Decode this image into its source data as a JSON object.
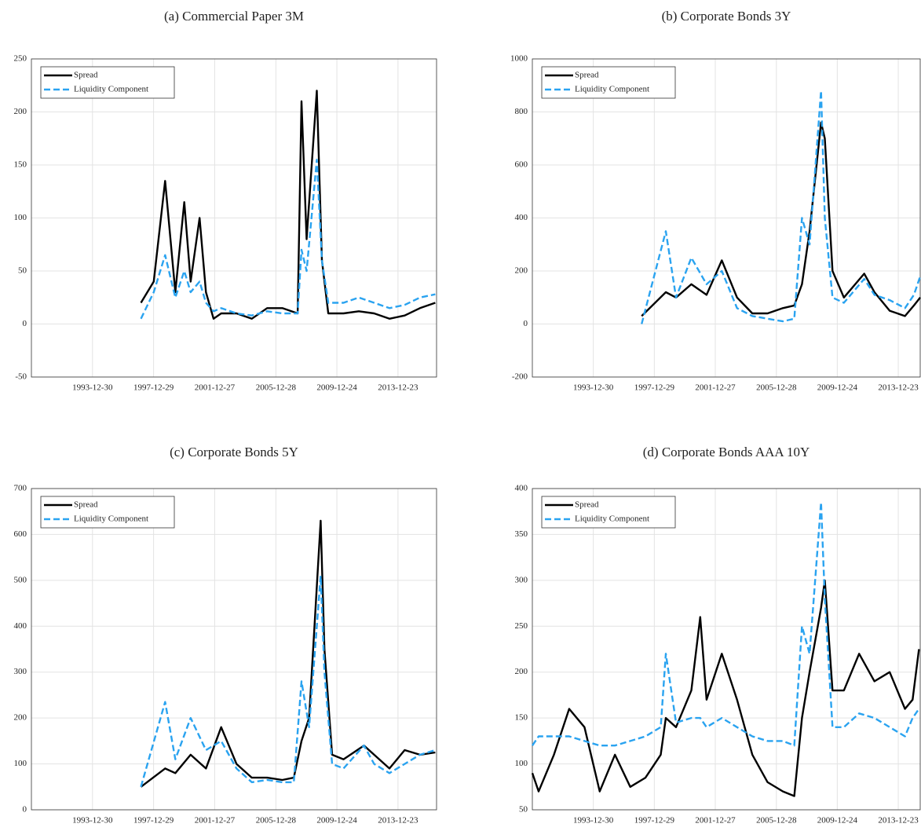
{
  "chart_data": [
    {
      "type": "line",
      "title": "(a) Commercial Paper 3M",
      "legend": "upper left",
      "grid": true,
      "xlim": [
        "1990-01-01",
        "2016-07-01"
      ],
      "xticks": [
        "1993-12-30",
        "1997-12-29",
        "2001-12-27",
        "2005-12-28",
        "2009-12-24",
        "2013-12-23"
      ],
      "ylim": [
        -50,
        250
      ],
      "yticks": [
        -50,
        0,
        50,
        100,
        150,
        200,
        250
      ],
      "x": [
        "1997-03-01",
        "1998-01-01",
        "1998-10-01",
        "1999-06-01",
        "2000-01-01",
        "2000-06-01",
        "2001-01-01",
        "2001-06-01",
        "2001-12-01",
        "2002-06-01",
        "2003-06-01",
        "2004-06-01",
        "2005-06-01",
        "2006-06-01",
        "2007-06-01",
        "2007-09-01",
        "2008-01-01",
        "2008-09-01",
        "2009-01-01",
        "2009-06-01",
        "2010-06-01",
        "2011-06-01",
        "2012-06-01",
        "2013-06-01",
        "2014-06-01",
        "2015-06-01",
        "2016-06-01"
      ],
      "series": [
        {
          "name": "Spread",
          "color": "#000000",
          "linestyle": "solid",
          "values": [
            20,
            40,
            135,
            30,
            115,
            40,
            100,
            30,
            5,
            10,
            10,
            5,
            15,
            15,
            10,
            210,
            80,
            220,
            60,
            10,
            10,
            12,
            10,
            5,
            8,
            15,
            20
          ]
        },
        {
          "name": "Liquidity Component",
          "color": "#2aa3f0",
          "linestyle": "dashed",
          "values": [
            5,
            30,
            65,
            25,
            50,
            30,
            40,
            20,
            12,
            15,
            10,
            8,
            12,
            10,
            10,
            70,
            50,
            155,
            60,
            20,
            20,
            25,
            20,
            15,
            18,
            25,
            28
          ]
        }
      ]
    },
    {
      "type": "line",
      "title": "(b) Corporate Bonds 3Y",
      "legend": "upper left",
      "grid": true,
      "xlim": [
        "1990-01-01",
        "2015-06-01"
      ],
      "xticks": [
        "1993-12-30",
        "1997-12-29",
        "2001-12-27",
        "2005-12-28",
        "2009-12-24",
        "2013-12-23"
      ],
      "ylim": [
        -200,
        1000
      ],
      "yticks": [
        -200,
        0,
        200,
        400,
        600,
        800,
        1000
      ],
      "x": [
        "1997-03-01",
        "1998-10-01",
        "1999-06-01",
        "2000-06-01",
        "2001-06-01",
        "2002-06-01",
        "2003-06-01",
        "2004-06-01",
        "2005-06-01",
        "2006-06-01",
        "2007-03-01",
        "2007-09-01",
        "2008-03-01",
        "2008-12-01",
        "2009-03-01",
        "2009-09-01",
        "2010-06-01",
        "2011-10-01",
        "2012-06-01",
        "2013-06-01",
        "2014-06-01",
        "2015-01-01",
        "2015-06-01"
      ],
      "series": [
        {
          "name": "Spread",
          "color": "#000000",
          "linestyle": "solid",
          "values": [
            30,
            120,
            100,
            150,
            110,
            240,
            100,
            40,
            40,
            60,
            70,
            150,
            350,
            760,
            700,
            200,
            100,
            190,
            120,
            50,
            30,
            70,
            100
          ]
        },
        {
          "name": "Liquidity Component",
          "color": "#2aa3f0",
          "linestyle": "dashed",
          "values": [
            0,
            350,
            100,
            250,
            150,
            200,
            60,
            30,
            20,
            10,
            20,
            400,
            300,
            880,
            400,
            100,
            80,
            170,
            110,
            90,
            60,
            110,
            180
          ]
        }
      ]
    },
    {
      "type": "line",
      "title": "(c) Corporate Bonds 5Y",
      "legend": "upper left",
      "grid": true,
      "xlim": [
        "1990-01-01",
        "2016-07-01"
      ],
      "xticks": [
        "1993-12-30",
        "1997-12-29",
        "2001-12-27",
        "2005-12-28",
        "2009-12-24",
        "2013-12-23"
      ],
      "ylim": [
        0,
        700
      ],
      "yticks": [
        0,
        100,
        200,
        300,
        400,
        500,
        600,
        700
      ],
      "x": [
        "1997-03-01",
        "1998-10-01",
        "1999-06-01",
        "2000-06-01",
        "2001-06-01",
        "2002-06-01",
        "2003-06-01",
        "2004-06-01",
        "2005-06-01",
        "2006-06-01",
        "2007-03-01",
        "2007-09-01",
        "2008-03-01",
        "2008-12-01",
        "2009-03-01",
        "2009-09-01",
        "2010-06-01",
        "2011-10-01",
        "2012-06-01",
        "2013-06-01",
        "2014-06-01",
        "2015-06-01",
        "2016-06-01"
      ],
      "series": [
        {
          "name": "Spread",
          "color": "#000000",
          "linestyle": "solid",
          "values": [
            50,
            90,
            80,
            120,
            90,
            180,
            100,
            70,
            70,
            65,
            70,
            150,
            200,
            630,
            350,
            120,
            110,
            140,
            120,
            90,
            130,
            120,
            125
          ]
        },
        {
          "name": "Liquidity Component",
          "color": "#2aa3f0",
          "linestyle": "dashed",
          "values": [
            50,
            235,
            110,
            200,
            130,
            150,
            90,
            60,
            65,
            60,
            60,
            280,
            180,
            510,
            300,
            100,
            90,
            140,
            100,
            80,
            100,
            120,
            130
          ]
        }
      ]
    },
    {
      "type": "line",
      "title": "(d) Corporate Bonds AAA 10Y",
      "legend": "upper left",
      "grid": true,
      "xlim": [
        "1990-01-01",
        "2015-06-01"
      ],
      "xticks": [
        "1993-12-30",
        "1997-12-29",
        "2001-12-27",
        "2005-12-28",
        "2009-12-24",
        "2013-12-23"
      ],
      "ylim": [
        50,
        400
      ],
      "yticks": [
        50,
        100,
        150,
        200,
        250,
        300,
        350,
        400
      ],
      "x": [
        "1990-01-01",
        "1990-06-01",
        "1991-06-01",
        "1992-06-01",
        "1993-06-01",
        "1994-06-01",
        "1995-06-01",
        "1996-06-01",
        "1997-06-01",
        "1998-06-01",
        "1998-10-01",
        "1999-06-01",
        "2000-06-01",
        "2001-01-01",
        "2001-06-01",
        "2002-06-01",
        "2003-06-01",
        "2004-06-01",
        "2005-06-01",
        "2006-06-01",
        "2007-03-01",
        "2007-09-01",
        "2008-03-01",
        "2008-12-01",
        "2009-03-01",
        "2009-09-01",
        "2010-06-01",
        "2011-06-01",
        "2012-06-01",
        "2013-06-01",
        "2014-06-01",
        "2014-12-01",
        "2015-05-01"
      ],
      "series": [
        {
          "name": "Spread",
          "color": "#000000",
          "linestyle": "solid",
          "values": [
            90,
            70,
            110,
            160,
            140,
            70,
            110,
            75,
            85,
            110,
            150,
            140,
            180,
            260,
            170,
            220,
            170,
            110,
            80,
            70,
            65,
            150,
            200,
            270,
            300,
            180,
            180,
            220,
            190,
            200,
            160,
            170,
            225
          ]
        },
        {
          "name": "Liquidity Component",
          "color": "#2aa3f0",
          "linestyle": "dashed",
          "values": [
            120,
            130,
            130,
            130,
            125,
            120,
            120,
            125,
            130,
            140,
            220,
            145,
            150,
            150,
            140,
            150,
            140,
            130,
            125,
            125,
            120,
            250,
            220,
            385,
            280,
            140,
            140,
            155,
            150,
            140,
            130,
            150,
            160
          ]
        }
      ]
    }
  ]
}
